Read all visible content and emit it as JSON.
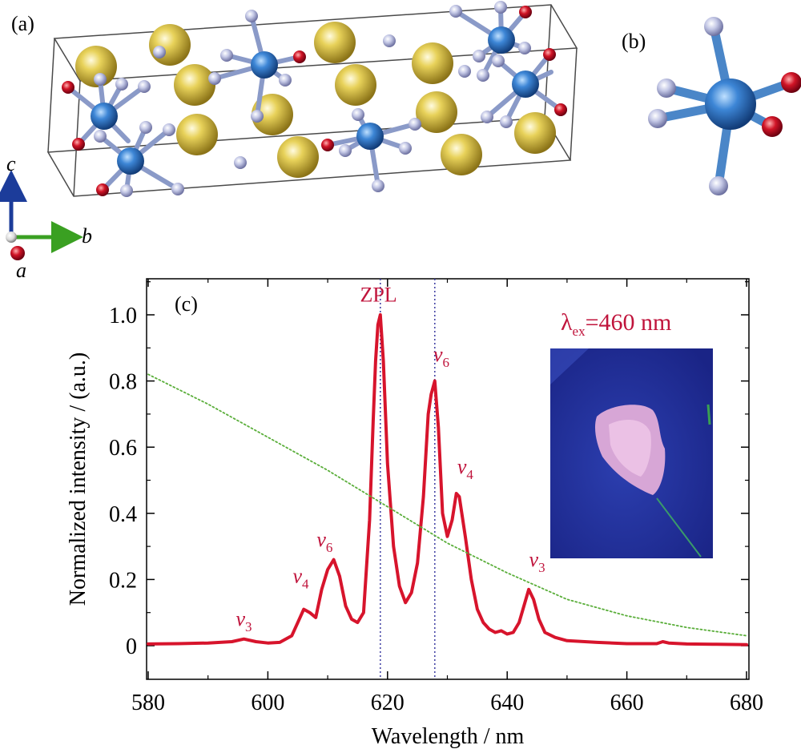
{
  "panels": {
    "a_label": "(a)",
    "b_label": "(b)",
    "c_label": "(c)"
  },
  "axes_triad": {
    "c": "c",
    "b": "b",
    "a": "a"
  },
  "inset": {
    "excitation_symbol": "λ",
    "excitation_subscript": "ex",
    "excitation_value": "=460 nm"
  },
  "colors": {
    "emission": "#d7142c",
    "excitation_ref": "#5aae3a",
    "marker_line": "#3a3aa0",
    "annotation": "#c0143c",
    "sphere_gold": "#c9b33a",
    "sphere_blue": "#2e6fb8",
    "sphere_red": "#c8102e",
    "sphere_lavender": "#b8bde0"
  },
  "chart_data": {
    "type": "line",
    "title": "",
    "xlabel": "Wavelength / nm",
    "ylabel": "Normalized intensity / (a.u.)",
    "xlim": [
      580,
      680
    ],
    "ylim": [
      -0.07,
      1.1
    ],
    "xticks": [
      580,
      600,
      620,
      640,
      660,
      680
    ],
    "xtick_labels": [
      "580",
      "600",
      "620",
      "640",
      "660",
      "680"
    ],
    "yticks": [
      0,
      0.2,
      0.4,
      0.6,
      0.8,
      1.0
    ],
    "ytick_labels": [
      "0",
      "0.2",
      "0.4",
      "0.6",
      "0.8",
      "1.0"
    ],
    "grid": false,
    "legend": "none",
    "vertical_markers": [
      618.8,
      627.9
    ],
    "series": [
      {
        "line": "solid",
        "color": "#d7142c",
        "x": [
          580,
          585,
          590,
          594,
          596,
          598,
          600,
          602,
          604,
          605,
          606,
          607,
          608,
          609,
          610,
          611,
          612,
          613,
          614,
          615,
          616,
          617,
          617.6,
          618,
          618.4,
          618.8,
          619.3,
          620,
          621,
          622,
          623,
          624,
          625,
          626,
          626.8,
          627.3,
          627.9,
          628.5,
          629.2,
          630,
          630.8,
          631.5,
          632,
          633,
          634,
          635,
          636,
          637,
          638,
          639,
          640,
          641,
          642,
          642.8,
          643.6,
          644.4,
          645.3,
          646.3,
          648,
          650,
          655,
          660,
          665,
          666,
          667,
          670,
          675,
          680
        ],
        "y": [
          0.005,
          0.006,
          0.008,
          0.012,
          0.02,
          0.012,
          0.008,
          0.01,
          0.03,
          0.07,
          0.11,
          0.1,
          0.085,
          0.17,
          0.23,
          0.26,
          0.21,
          0.12,
          0.08,
          0.07,
          0.1,
          0.38,
          0.68,
          0.86,
          0.97,
          1.0,
          0.86,
          0.55,
          0.3,
          0.18,
          0.13,
          0.16,
          0.25,
          0.45,
          0.7,
          0.76,
          0.8,
          0.66,
          0.4,
          0.33,
          0.38,
          0.46,
          0.45,
          0.33,
          0.2,
          0.11,
          0.07,
          0.05,
          0.04,
          0.045,
          0.035,
          0.04,
          0.07,
          0.12,
          0.17,
          0.14,
          0.08,
          0.04,
          0.025,
          0.015,
          0.01,
          0.006,
          0.006,
          0.012,
          0.008,
          0.005,
          0.004,
          0.003
        ]
      },
      {
        "line": "dotted",
        "color": "#5aae3a",
        "x": [
          580,
          590,
          600,
          610,
          620,
          630,
          640,
          650,
          660,
          670,
          680
        ],
        "y": [
          0.82,
          0.73,
          0.63,
          0.53,
          0.42,
          0.31,
          0.22,
          0.14,
          0.09,
          0.055,
          0.03
        ]
      }
    ],
    "annotations": [
      {
        "base": "v",
        "sub": "3",
        "x": 596,
        "y": 0.06
      },
      {
        "base": "v",
        "sub": "4",
        "x": 605.5,
        "y": 0.19
      },
      {
        "base": "v",
        "sub": "6",
        "x": 609.5,
        "y": 0.3
      },
      {
        "base": "ZPL",
        "sub": "",
        "x": 618.5,
        "y": 1.04
      },
      {
        "base": "v",
        "sub": "6",
        "x": 629,
        "y": 0.86
      },
      {
        "base": "v",
        "sub": "4",
        "x": 633,
        "y": 0.52
      },
      {
        "base": "v",
        "sub": "3",
        "x": 645,
        "y": 0.24
      }
    ]
  }
}
